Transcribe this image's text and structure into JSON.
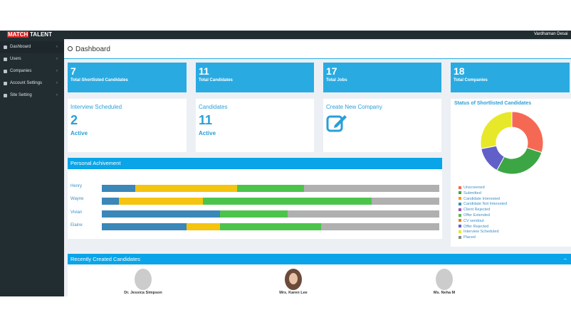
{
  "navbar": {
    "brand_a": "MATCH",
    "brand_b": "TALENT",
    "user": "Vardhaman Desai"
  },
  "sidebar": [
    "Dashboard",
    "Users",
    "Companies",
    "Account Settings",
    "Site Setting"
  ],
  "header": {
    "title": "Dashboard"
  },
  "stats": [
    {
      "value": "7",
      "label": "Total Shortlisted Candidates"
    },
    {
      "value": "11",
      "label": "Total Candidates"
    },
    {
      "value": "17",
      "label": "Total Jobs"
    },
    {
      "value": "18",
      "label": "Total Companies"
    }
  ],
  "cards": [
    {
      "title": "Interview Scheduled",
      "value": "2",
      "status": "Active"
    },
    {
      "title": "Candidates",
      "value": "11",
      "status": "Active"
    },
    {
      "title": "Create New Company"
    }
  ],
  "achievement": {
    "title": "Personal Achivement",
    "colors": [
      "#3a87b8",
      "#f4c40f",
      "#4cc44c",
      "#b0b0b0"
    ],
    "people": [
      {
        "name": "Henry",
        "values": [
          10,
          30,
          20,
          40
        ]
      },
      {
        "name": "Wayne",
        "values": [
          5,
          25,
          50,
          20
        ]
      },
      {
        "name": "Vivian",
        "values": [
          35,
          0,
          20,
          45
        ]
      },
      {
        "name": "Elaine",
        "values": [
          25,
          10,
          30,
          35
        ]
      }
    ]
  },
  "status_chart": {
    "type": "pie",
    "title": "Status of Shortlisted Candidates",
    "categories": [
      "Unscreened",
      "Submitted",
      "Candidate Interested",
      "Candidate Not Interested",
      "Client Rejected",
      "Offer Extended",
      "CV sendout",
      "Offer Rejected",
      "Interview Scheduled",
      "Placed"
    ],
    "values": [
      30,
      28,
      0,
      0,
      0,
      0,
      0,
      14,
      28,
      0
    ],
    "colors": [
      "#f56954",
      "#3ca644",
      "#f39c12",
      "#3c8dbc",
      "#9b59b6",
      "#5cb85c",
      "#e67e22",
      "#6060c8",
      "#e8e82a",
      "#7f8c8d"
    ]
  },
  "recent": {
    "title": "Recently Created Candidates",
    "collapse": "−",
    "candidates": [
      "Dr. Jessica Simpson",
      "Mrs. Karen Lee",
      "Ms. Neha M"
    ]
  }
}
